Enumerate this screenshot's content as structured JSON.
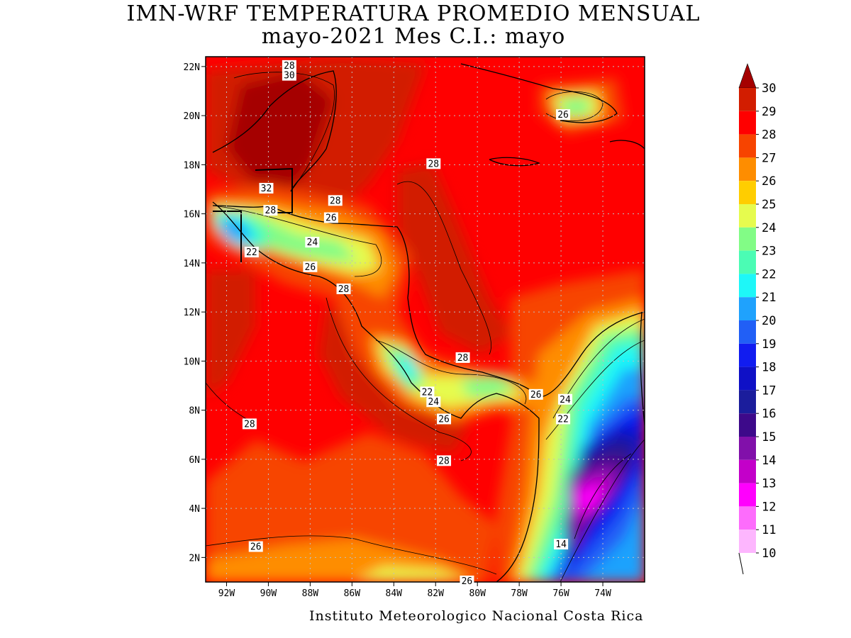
{
  "title": {
    "line1": "IMN-WRF  TEMPERATURA PROMEDIO MENSUAL",
    "line2": "mayo-2021 Mes C.I.: mayo"
  },
  "footer": "Instituto Meteorologico Nacional Costa Rica",
  "map": {
    "lat_labels": [
      "22N",
      "20N",
      "18N",
      "16N",
      "14N",
      "12N",
      "10N",
      "8N",
      "6N",
      "4N",
      "2N"
    ],
    "lon_labels": [
      "92W",
      "90W",
      "88W",
      "86W",
      "84W",
      "82W",
      "80W",
      "78W",
      "76W",
      "74W"
    ],
    "lat_range": [
      1,
      22.4
    ],
    "lon_range": [
      -93.0,
      -72.0
    ],
    "grid": true,
    "contour_labels": [
      {
        "text": "28",
        "lon": -89.0,
        "lat": 22.0
      },
      {
        "text": "30",
        "lon": -89.0,
        "lat": 21.6
      },
      {
        "text": "26",
        "lon": -75.9,
        "lat": 20.0
      },
      {
        "text": "28",
        "lon": -82.1,
        "lat": 18.0
      },
      {
        "text": "32",
        "lon": -90.1,
        "lat": 17.0
      },
      {
        "text": "28",
        "lon": -86.8,
        "lat": 16.5
      },
      {
        "text": "28",
        "lon": -89.9,
        "lat": 16.1
      },
      {
        "text": "26",
        "lon": -87.0,
        "lat": 15.8
      },
      {
        "text": "24",
        "lon": -87.9,
        "lat": 14.8
      },
      {
        "text": "22",
        "lon": -90.8,
        "lat": 14.4
      },
      {
        "text": "26",
        "lon": -88.0,
        "lat": 13.8
      },
      {
        "text": "28",
        "lon": -86.4,
        "lat": 12.9
      },
      {
        "text": "28",
        "lon": -80.7,
        "lat": 10.1
      },
      {
        "text": "22",
        "lon": -82.4,
        "lat": 8.7
      },
      {
        "text": "24",
        "lon": -82.1,
        "lat": 8.3
      },
      {
        "text": "26",
        "lon": -77.2,
        "lat": 8.6
      },
      {
        "text": "24",
        "lon": -75.8,
        "lat": 8.4
      },
      {
        "text": "22",
        "lon": -75.9,
        "lat": 7.6
      },
      {
        "text": "26",
        "lon": -81.6,
        "lat": 7.6
      },
      {
        "text": "28",
        "lon": -90.9,
        "lat": 7.4
      },
      {
        "text": "28",
        "lon": -81.6,
        "lat": 5.9
      },
      {
        "text": "26",
        "lon": -90.6,
        "lat": 2.4
      },
      {
        "text": "14",
        "lon": -76.0,
        "lat": 2.5
      },
      {
        "text": "26",
        "lon": -80.5,
        "lat": 1.0
      }
    ]
  },
  "colorbar": {
    "labels": [
      "30",
      "29",
      "28",
      "27",
      "26",
      "25",
      "24",
      "23",
      "22",
      "21",
      "20",
      "19",
      "18",
      "17",
      "16",
      "15",
      "14",
      "13",
      "12",
      "11",
      "10"
    ],
    "colors": [
      "#a50000",
      "#d21d00",
      "#ff0000",
      "#f74400",
      "#fe8d00",
      "#ffcd00",
      "#e6fb4e",
      "#82fc86",
      "#4bfcb4",
      "#1ef7f8",
      "#1fa2fd",
      "#215ff6",
      "#111cf0",
      "#0f10c6",
      "#1b1d9c",
      "#3d098a",
      "#8110aa",
      "#c300c9",
      "#ff00fd",
      "#fd6cfc",
      "#fdb6fe"
    ],
    "top_arrow_color": "#a50000"
  }
}
